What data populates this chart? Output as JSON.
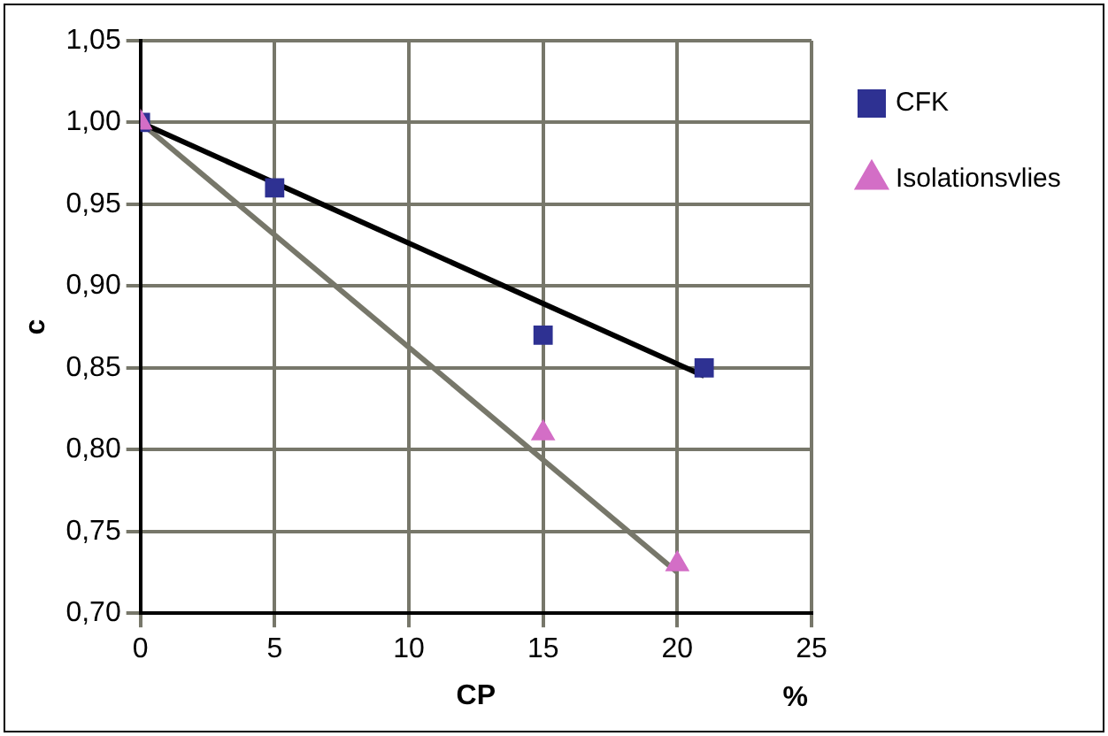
{
  "chart_data": {
    "type": "scatter",
    "xlabel": "CP",
    "ylabel": "c",
    "annotations": [
      "%"
    ],
    "series": [
      {
        "name": "CFK",
        "color": "#2e3192",
        "marker": "square",
        "x": [
          0,
          5,
          15,
          21
        ],
        "values": [
          1.0,
          0.96,
          0.87,
          0.85
        ]
      },
      {
        "name": "Isolationsvlies",
        "color": "#d36ec6",
        "marker": "triangle",
        "x": [
          0,
          15,
          20
        ],
        "values": [
          1.0,
          0.81,
          0.73
        ]
      },
      {
        "type": "line",
        "color": "#000000",
        "marker": "none",
        "x": [
          0,
          21
        ],
        "values": [
          1.0,
          0.845
        ]
      },
      {
        "type": "line",
        "color": "#77776a",
        "marker": "none",
        "x": [
          0,
          20
        ],
        "values": [
          1.0,
          0.725
        ]
      }
    ],
    "xlim": [
      0,
      25
    ],
    "xticks": [
      0,
      5,
      10,
      15,
      20,
      25
    ],
    "ylim": [
      0.7,
      1.05
    ],
    "yticks": [
      {
        "value": 0.7,
        "label": "0,70"
      },
      {
        "value": 0.75,
        "label": "0,75"
      },
      {
        "value": 0.8,
        "label": "0,80"
      },
      {
        "value": 0.85,
        "label": "0,85"
      },
      {
        "value": 0.9,
        "label": "0,90"
      },
      {
        "value": 0.95,
        "label": "0,95"
      },
      {
        "value": 1.0,
        "label": "1,00"
      },
      {
        "value": 1.05,
        "label": "1,05"
      }
    ],
    "grid": true,
    "legend": "right"
  }
}
